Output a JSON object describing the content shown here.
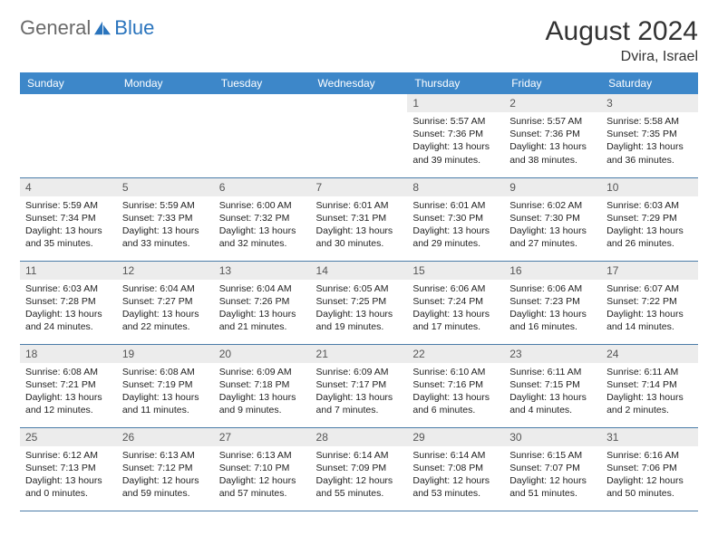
{
  "logo": {
    "text1": "General",
    "text2": "Blue"
  },
  "title": "August 2024",
  "location": "Dvira, Israel",
  "colors": {
    "header_bg": "#3d87c9",
    "header_text": "#ffffff",
    "daynum_bg": "#ececec",
    "border": "#4a7ca8",
    "logo_gray": "#6a6a6a",
    "logo_blue": "#2a74bd"
  },
  "weekdays": [
    "Sunday",
    "Monday",
    "Tuesday",
    "Wednesday",
    "Thursday",
    "Friday",
    "Saturday"
  ],
  "weeks": [
    [
      null,
      null,
      null,
      null,
      {
        "n": "1",
        "sr": "5:57 AM",
        "ss": "7:36 PM",
        "dl": "13 hours and 39 minutes."
      },
      {
        "n": "2",
        "sr": "5:57 AM",
        "ss": "7:36 PM",
        "dl": "13 hours and 38 minutes."
      },
      {
        "n": "3",
        "sr": "5:58 AM",
        "ss": "7:35 PM",
        "dl": "13 hours and 36 minutes."
      }
    ],
    [
      {
        "n": "4",
        "sr": "5:59 AM",
        "ss": "7:34 PM",
        "dl": "13 hours and 35 minutes."
      },
      {
        "n": "5",
        "sr": "5:59 AM",
        "ss": "7:33 PM",
        "dl": "13 hours and 33 minutes."
      },
      {
        "n": "6",
        "sr": "6:00 AM",
        "ss": "7:32 PM",
        "dl": "13 hours and 32 minutes."
      },
      {
        "n": "7",
        "sr": "6:01 AM",
        "ss": "7:31 PM",
        "dl": "13 hours and 30 minutes."
      },
      {
        "n": "8",
        "sr": "6:01 AM",
        "ss": "7:30 PM",
        "dl": "13 hours and 29 minutes."
      },
      {
        "n": "9",
        "sr": "6:02 AM",
        "ss": "7:30 PM",
        "dl": "13 hours and 27 minutes."
      },
      {
        "n": "10",
        "sr": "6:03 AM",
        "ss": "7:29 PM",
        "dl": "13 hours and 26 minutes."
      }
    ],
    [
      {
        "n": "11",
        "sr": "6:03 AM",
        "ss": "7:28 PM",
        "dl": "13 hours and 24 minutes."
      },
      {
        "n": "12",
        "sr": "6:04 AM",
        "ss": "7:27 PM",
        "dl": "13 hours and 22 minutes."
      },
      {
        "n": "13",
        "sr": "6:04 AM",
        "ss": "7:26 PM",
        "dl": "13 hours and 21 minutes."
      },
      {
        "n": "14",
        "sr": "6:05 AM",
        "ss": "7:25 PM",
        "dl": "13 hours and 19 minutes."
      },
      {
        "n": "15",
        "sr": "6:06 AM",
        "ss": "7:24 PM",
        "dl": "13 hours and 17 minutes."
      },
      {
        "n": "16",
        "sr": "6:06 AM",
        "ss": "7:23 PM",
        "dl": "13 hours and 16 minutes."
      },
      {
        "n": "17",
        "sr": "6:07 AM",
        "ss": "7:22 PM",
        "dl": "13 hours and 14 minutes."
      }
    ],
    [
      {
        "n": "18",
        "sr": "6:08 AM",
        "ss": "7:21 PM",
        "dl": "13 hours and 12 minutes."
      },
      {
        "n": "19",
        "sr": "6:08 AM",
        "ss": "7:19 PM",
        "dl": "13 hours and 11 minutes."
      },
      {
        "n": "20",
        "sr": "6:09 AM",
        "ss": "7:18 PM",
        "dl": "13 hours and 9 minutes."
      },
      {
        "n": "21",
        "sr": "6:09 AM",
        "ss": "7:17 PM",
        "dl": "13 hours and 7 minutes."
      },
      {
        "n": "22",
        "sr": "6:10 AM",
        "ss": "7:16 PM",
        "dl": "13 hours and 6 minutes."
      },
      {
        "n": "23",
        "sr": "6:11 AM",
        "ss": "7:15 PM",
        "dl": "13 hours and 4 minutes."
      },
      {
        "n": "24",
        "sr": "6:11 AM",
        "ss": "7:14 PM",
        "dl": "13 hours and 2 minutes."
      }
    ],
    [
      {
        "n": "25",
        "sr": "6:12 AM",
        "ss": "7:13 PM",
        "dl": "13 hours and 0 minutes."
      },
      {
        "n": "26",
        "sr": "6:13 AM",
        "ss": "7:12 PM",
        "dl": "12 hours and 59 minutes."
      },
      {
        "n": "27",
        "sr": "6:13 AM",
        "ss": "7:10 PM",
        "dl": "12 hours and 57 minutes."
      },
      {
        "n": "28",
        "sr": "6:14 AM",
        "ss": "7:09 PM",
        "dl": "12 hours and 55 minutes."
      },
      {
        "n": "29",
        "sr": "6:14 AM",
        "ss": "7:08 PM",
        "dl": "12 hours and 53 minutes."
      },
      {
        "n": "30",
        "sr": "6:15 AM",
        "ss": "7:07 PM",
        "dl": "12 hours and 51 minutes."
      },
      {
        "n": "31",
        "sr": "6:16 AM",
        "ss": "7:06 PM",
        "dl": "12 hours and 50 minutes."
      }
    ]
  ],
  "labels": {
    "sunrise": "Sunrise: ",
    "sunset": "Sunset: ",
    "daylight": "Daylight: "
  }
}
